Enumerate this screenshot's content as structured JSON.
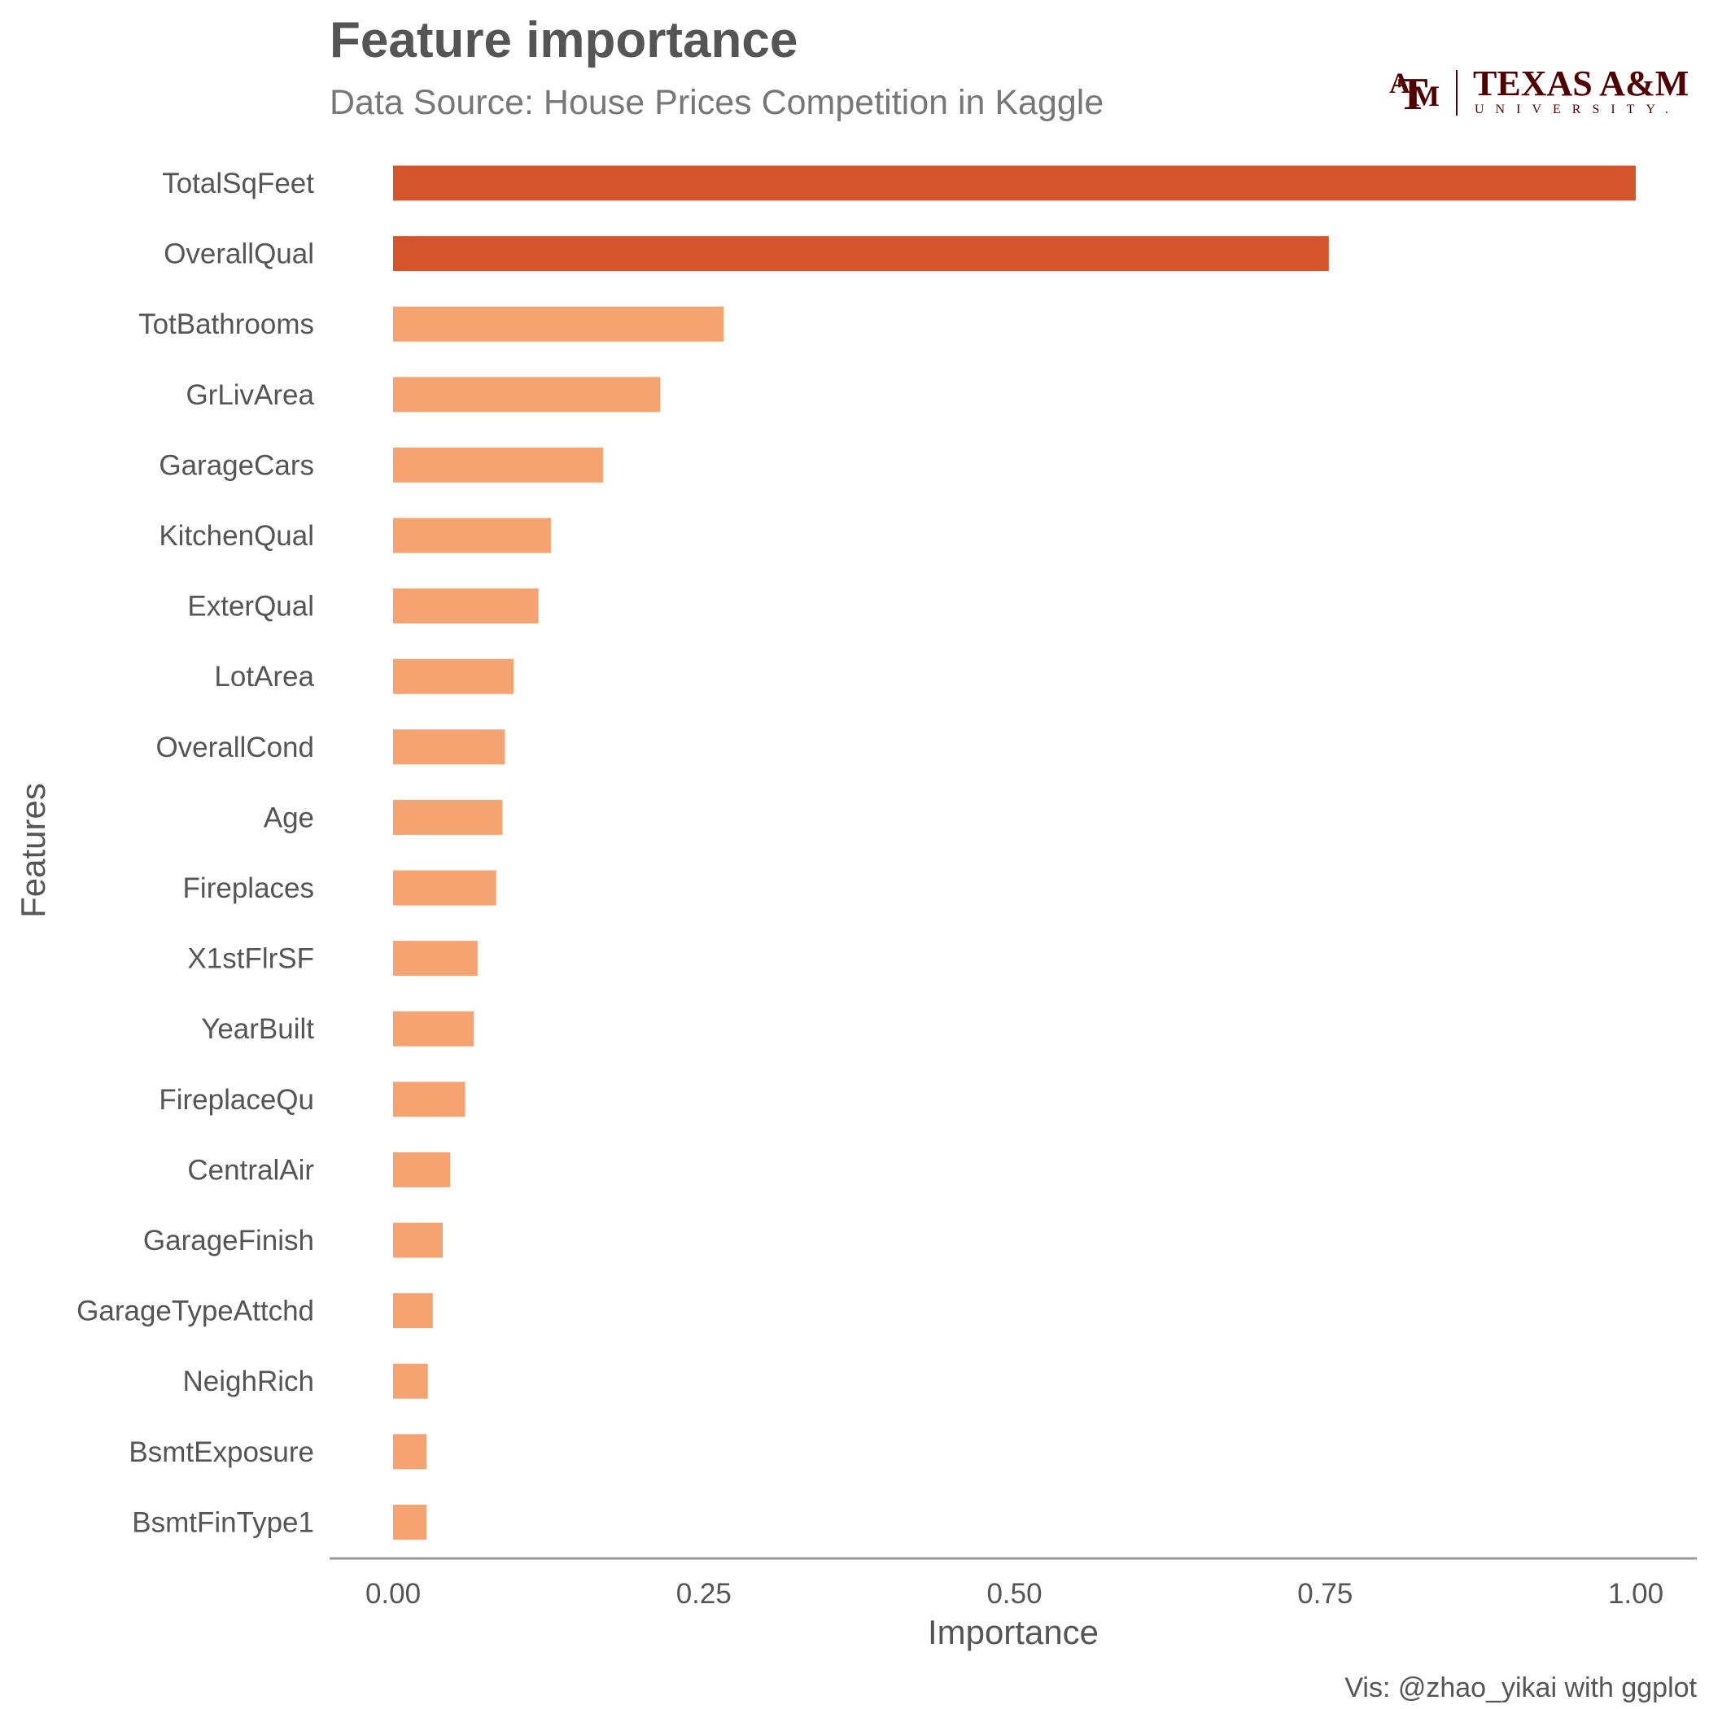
{
  "chart_data": {
    "type": "bar",
    "orientation": "horizontal",
    "title": "Feature importance",
    "subtitle": "Data Source: House Prices Competition in Kaggle",
    "xlabel": "Importance",
    "ylabel": "Features",
    "caption": "Vis: @zhao_yikai with ggplot",
    "xlim": [
      0,
      1
    ],
    "xticks": [
      0,
      0.25,
      0.5,
      0.75,
      1
    ],
    "xtick_labels": [
      "0.00",
      "0.25",
      "0.50",
      "0.75",
      "1.00"
    ],
    "grid": false,
    "legend": "none",
    "categories": [
      "TotalSqFeet",
      "OverallQual",
      "TotBathrooms",
      "GrLivArea",
      "GarageCars",
      "KitchenQual",
      "ExterQual",
      "LotArea",
      "OverallCond",
      "Age",
      "Fireplaces",
      "X1stFlrSF",
      "YearBuilt",
      "FireplaceQu",
      "CentralAir",
      "GarageFinish",
      "GarageTypeAttchd",
      "NeighRich",
      "BsmtExposure",
      "BsmtFinType1"
    ],
    "values": [
      1.0,
      0.753,
      0.266,
      0.215,
      0.169,
      0.127,
      0.117,
      0.097,
      0.09,
      0.088,
      0.083,
      0.068,
      0.065,
      0.058,
      0.046,
      0.04,
      0.032,
      0.028,
      0.027,
      0.027
    ],
    "highlighted_count": 2
  },
  "colors": {
    "highlight": "#d4552b",
    "normal": "#f5a370",
    "text": "#555555",
    "subtitle": "#777777",
    "axis_line": "#999999",
    "logo": "#500000"
  },
  "logo": {
    "mark_top": "A",
    "mark_middle": "T",
    "mark_bottom": "M",
    "name": "TEXAS A&M",
    "sub": "UNIVERSITY."
  }
}
